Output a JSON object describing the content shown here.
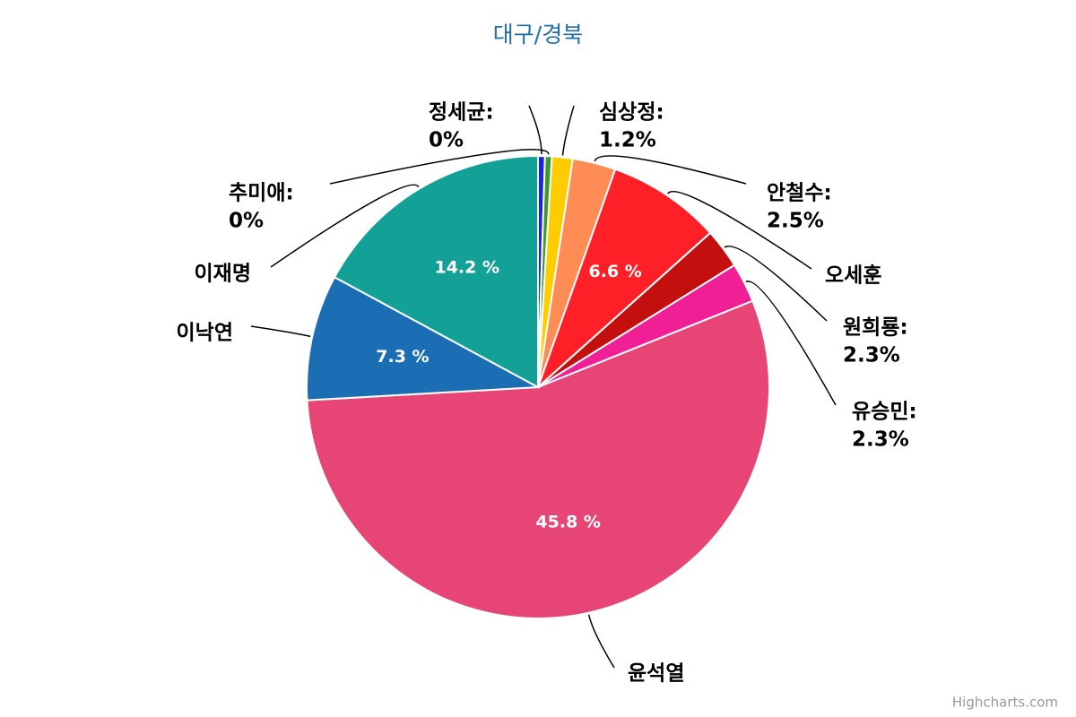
{
  "chart_data": {
    "type": "pie",
    "title": "대구/경북",
    "categories": [
      "정세균:",
      "추미애:",
      "심상정:",
      "안철수:",
      "오세훈",
      "원희룡:",
      "유승민:",
      "윤석열",
      "이낙연",
      "이재명"
    ],
    "values": [
      0.4,
      0.4,
      1.2,
      2.5,
      6.6,
      2.3,
      2.3,
      45.8,
      7.3,
      14.2
    ],
    "value_labels": [
      "0%",
      "0%",
      "1.2%",
      "2.5%",
      "6.6 %",
      "2.3%",
      "2.3%",
      "45.8 %",
      "7.3 %",
      "14.2 %"
    ],
    "label_inside": [
      false,
      false,
      false,
      false,
      true,
      false,
      false,
      true,
      true,
      true
    ],
    "colors": [
      "#1f1fe8",
      "#3b9a2c",
      "#ffcc00",
      "#ff8c55",
      "#ff1f26",
      "#c40f0f",
      "#f01f96",
      "#e64575",
      "#1b6db4",
      "#13a096"
    ],
    "credits": "Highcharts.com"
  }
}
